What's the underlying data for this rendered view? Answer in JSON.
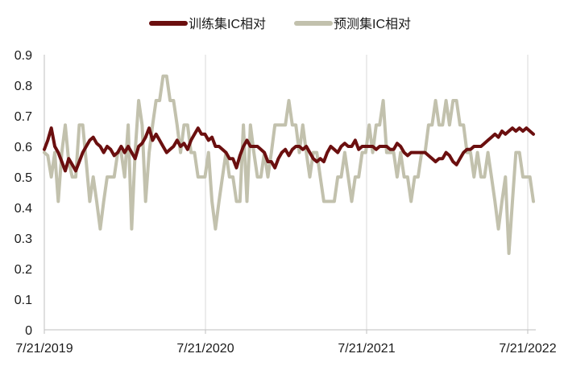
{
  "chart_data": {
    "type": "line",
    "title": "",
    "xlabel": "",
    "ylabel": "",
    "ylim": [
      0,
      0.9
    ],
    "yticks": [
      "0",
      "0.1",
      "0.2",
      "0.3",
      "0.4",
      "0.5",
      "0.6",
      "0.7",
      "0.8",
      "0.9"
    ],
    "x_tick_labels": [
      "7/21/2019",
      "7/21/2020",
      "7/21/2021",
      "7/21/2022"
    ],
    "vertical_gridlines": true,
    "horizontal_gridlines": false,
    "legend_position": "top-center",
    "series": [
      {
        "name": "训练集IC相对",
        "color": "#6b0f0f",
        "values": [
          0.59,
          0.62,
          0.66,
          0.6,
          0.58,
          0.55,
          0.52,
          0.56,
          0.54,
          0.52,
          0.55,
          0.58,
          0.6,
          0.62,
          0.63,
          0.61,
          0.6,
          0.58,
          0.6,
          0.59,
          0.57,
          0.58,
          0.6,
          0.58,
          0.6,
          0.58,
          0.56,
          0.6,
          0.61,
          0.63,
          0.66,
          0.62,
          0.64,
          0.62,
          0.6,
          0.58,
          0.59,
          0.6,
          0.62,
          0.6,
          0.61,
          0.59,
          0.62,
          0.64,
          0.66,
          0.64,
          0.64,
          0.62,
          0.63,
          0.6,
          0.6,
          0.59,
          0.58,
          0.56,
          0.56,
          0.53,
          0.57,
          0.6,
          0.62,
          0.6,
          0.6,
          0.6,
          0.59,
          0.58,
          0.55,
          0.55,
          0.53,
          0.56,
          0.58,
          0.59,
          0.57,
          0.59,
          0.6,
          0.6,
          0.59,
          0.6,
          0.58,
          0.56,
          0.55,
          0.56,
          0.55,
          0.58,
          0.6,
          0.59,
          0.58,
          0.6,
          0.61,
          0.6,
          0.6,
          0.62,
          0.59,
          0.6,
          0.6,
          0.6,
          0.6,
          0.59,
          0.6,
          0.6,
          0.6,
          0.59,
          0.59,
          0.61,
          0.6,
          0.58,
          0.57,
          0.58,
          0.58,
          0.58,
          0.58,
          0.58,
          0.57,
          0.56,
          0.55,
          0.56,
          0.56,
          0.58,
          0.57,
          0.55,
          0.54,
          0.56,
          0.58,
          0.59,
          0.59,
          0.6,
          0.6,
          0.6,
          0.61,
          0.62,
          0.63,
          0.64,
          0.63,
          0.65,
          0.64,
          0.65,
          0.66,
          0.65,
          0.66,
          0.65,
          0.66,
          0.65,
          0.64
        ]
      },
      {
        "name": "预测集IC相对",
        "color": "#c2c1ad",
        "values": [
          0.58,
          0.57,
          0.5,
          0.58,
          0.42,
          0.58,
          0.67,
          0.55,
          0.5,
          0.5,
          0.67,
          0.67,
          0.55,
          0.42,
          0.5,
          0.42,
          0.33,
          0.42,
          0.5,
          0.5,
          0.5,
          0.58,
          0.58,
          0.5,
          0.67,
          0.33,
          0.58,
          0.75,
          0.67,
          0.42,
          0.58,
          0.67,
          0.75,
          0.75,
          0.83,
          0.83,
          0.75,
          0.75,
          0.67,
          0.58,
          0.67,
          0.67,
          0.58,
          0.58,
          0.5,
          0.5,
          0.5,
          0.58,
          0.42,
          0.33,
          0.42,
          0.5,
          0.58,
          0.5,
          0.5,
          0.42,
          0.42,
          0.67,
          0.42,
          0.67,
          0.58,
          0.5,
          0.5,
          0.58,
          0.5,
          0.58,
          0.67,
          0.67,
          0.67,
          0.67,
          0.75,
          0.67,
          0.67,
          0.58,
          0.67,
          0.58,
          0.5,
          0.58,
          0.58,
          0.5,
          0.42,
          0.42,
          0.42,
          0.42,
          0.5,
          0.5,
          0.58,
          0.5,
          0.42,
          0.5,
          0.5,
          0.58,
          0.58,
          0.67,
          0.58,
          0.67,
          0.67,
          0.75,
          0.58,
          0.58,
          0.58,
          0.5,
          0.58,
          0.5,
          0.5,
          0.42,
          0.5,
          0.5,
          0.58,
          0.58,
          0.67,
          0.67,
          0.75,
          0.67,
          0.67,
          0.75,
          0.67,
          0.75,
          0.75,
          0.67,
          0.67,
          0.58,
          0.58,
          0.5,
          0.58,
          0.5,
          0.5,
          0.58,
          0.5,
          0.42,
          0.33,
          0.42,
          0.5,
          0.25,
          0.42,
          0.58,
          0.58,
          0.5,
          0.5,
          0.5,
          0.42
        ]
      }
    ]
  }
}
